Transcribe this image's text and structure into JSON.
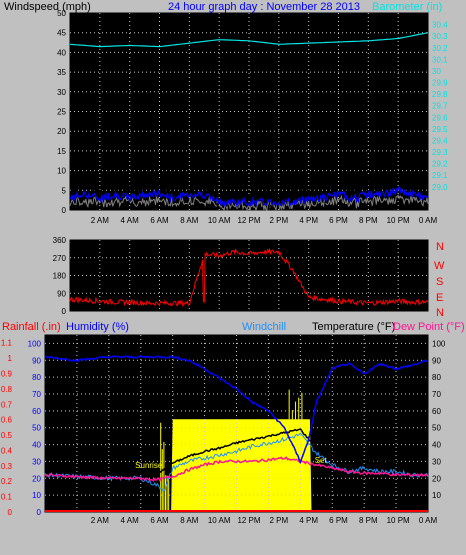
{
  "colors": {
    "background": "#c0c0c0",
    "plot_bg": "#000000",
    "grid": "#c8c8c8",
    "axis_text": "#000000",
    "wind_speed": "#000000",
    "wind_avg": "#0000ff",
    "wind_gray": "#808080",
    "barometer": "#00e5e5",
    "direction": "#ff0000",
    "rainfall": "#ff0000",
    "humidity": "#0000ff",
    "windchill": "#1e90ff",
    "temperature": "#000000",
    "dewpoint": "#ff1493",
    "solar": "#ffff00",
    "sun_label": "#ffff00",
    "title": "#0000ff"
  },
  "chart_data": [
    {
      "type": "line",
      "name": "wind-barometer",
      "title": "24 hour graph day : November 28 2013",
      "left_label": "Windspeed (mph)",
      "right_label": "Barometer (in)",
      "x_ticks": [
        "2 AM",
        "4 AM",
        "6 AM",
        "8 AM",
        "10 AM",
        "12 PM",
        "2 PM",
        "4 PM",
        "6 PM",
        "8 PM",
        "10 PM",
        "0 AM"
      ],
      "x_range_hours": [
        0,
        24
      ],
      "y_left_ticks": [
        0,
        5,
        10,
        15,
        20,
        25,
        30,
        35,
        40,
        45,
        50
      ],
      "y_left_range": [
        0,
        50
      ],
      "y_right_ticks": [
        "29.0",
        "29.1",
        "29.2",
        "29.3",
        "29.4",
        "29.5",
        "29.6",
        "29.7",
        "29.8",
        "29.9",
        "30",
        "30.1",
        "30.2",
        "30.3",
        "30.4"
      ],
      "y_right_range": [
        28.8,
        30.5
      ],
      "grid": true,
      "series": [
        {
          "name": "Windspeed",
          "x": [
            0,
            1,
            2,
            3,
            4,
            5,
            6,
            7,
            8,
            9,
            10,
            11,
            12,
            13,
            14,
            15,
            16,
            17,
            18,
            19,
            20,
            21,
            22,
            23,
            24
          ],
          "values": [
            5,
            6,
            5,
            7,
            5,
            6,
            6,
            4,
            6,
            7,
            3,
            3,
            4,
            3,
            3,
            4,
            5,
            4,
            6,
            5,
            7,
            6,
            8,
            6,
            5
          ]
        },
        {
          "name": "Wind average",
          "x": [
            0,
            1,
            2,
            3,
            4,
            5,
            6,
            7,
            8,
            9,
            10,
            11,
            12,
            13,
            14,
            15,
            16,
            17,
            18,
            19,
            20,
            21,
            22,
            23,
            24
          ],
          "values": [
            3,
            4,
            3,
            4,
            3,
            4,
            4,
            3,
            4,
            4,
            2,
            2,
            2,
            2,
            2,
            2,
            3,
            3,
            4,
            3,
            4,
            4,
            5,
            4,
            3
          ]
        },
        {
          "name": "Barometer",
          "x": [
            0,
            2,
            4,
            6,
            8,
            10,
            12,
            14,
            16,
            18,
            20,
            22,
            24
          ],
          "values": [
            30.23,
            30.21,
            30.22,
            30.21,
            30.24,
            30.27,
            30.26,
            30.23,
            30.24,
            30.25,
            30.26,
            30.28,
            30.33
          ]
        }
      ]
    },
    {
      "type": "scatter",
      "name": "wind-direction",
      "y_ticks": [
        0,
        90,
        180,
        270,
        360
      ],
      "y_range": [
        0,
        360
      ],
      "y_right_labels": [
        "N",
        "E",
        "S",
        "W",
        "N"
      ],
      "x_range_hours": [
        0,
        24
      ],
      "grid": true,
      "series": [
        {
          "name": "Direction",
          "x": [
            0,
            1,
            2,
            3,
            4,
            5,
            6,
            7,
            8,
            9,
            10,
            11,
            12,
            13,
            14,
            15,
            16,
            17,
            18,
            19,
            20,
            21,
            22,
            23,
            24
          ],
          "values": [
            60,
            55,
            50,
            45,
            45,
            40,
            40,
            40,
            40,
            290,
            280,
            300,
            290,
            300,
            300,
            200,
            70,
            60,
            50,
            45,
            40,
            45,
            50,
            45,
            45
          ]
        }
      ]
    },
    {
      "type": "line",
      "name": "temperature-humidity",
      "left_label_1": "Rainfall (.in)",
      "left_label_2": "Humidity (%)",
      "windchill_label": "Windchill",
      "temperature_label": "Temperature (°F)",
      "dewpoint_label": "Dew Point (°F)",
      "sunrise_label": "Sunrise",
      "sunset_label": "Set",
      "x_ticks": [
        "2 AM",
        "4 AM",
        "6 AM",
        "8 AM",
        "10 AM",
        "12 PM",
        "2 PM",
        "4 PM",
        "6 PM",
        "8 PM",
        "10 PM",
        "0 AM"
      ],
      "x_range_hours": [
        0,
        24
      ],
      "y_rain_ticks": [
        "0",
        "0.1",
        "0.2",
        "0.3",
        "0.4",
        "0.5",
        "0.6",
        "0.7",
        "0.8",
        "0.9",
        "1",
        "1.1"
      ],
      "y_rain_range": [
        0,
        1.15
      ],
      "y_humidity_ticks": [
        0,
        10,
        20,
        30,
        40,
        50,
        60,
        70,
        80,
        90,
        100
      ],
      "y_humidity_range": [
        0,
        105
      ],
      "y_temp_ticks": [
        10,
        20,
        30,
        40,
        50,
        60,
        70,
        80,
        90,
        100
      ],
      "y_temp_range": [
        0,
        105
      ],
      "grid": true,
      "series": [
        {
          "name": "Humidity",
          "x": [
            0,
            2,
            4,
            6,
            7,
            8,
            9,
            10,
            11,
            12,
            13,
            14,
            15,
            15.5,
            16,
            16.5,
            17,
            18,
            19,
            20,
            21,
            22,
            23,
            24
          ],
          "values": [
            92,
            90,
            92,
            92,
            92,
            92,
            90,
            85,
            79,
            73,
            65,
            60,
            50,
            40,
            30,
            42,
            65,
            85,
            88,
            82,
            88,
            85,
            87,
            90
          ]
        },
        {
          "name": "Temperature",
          "x": [
            0,
            2,
            4,
            6,
            7,
            8,
            9,
            10,
            11,
            12,
            13,
            14,
            15,
            16,
            17,
            18,
            19,
            20,
            21,
            22,
            23,
            24
          ],
          "values": [
            26,
            25,
            25,
            24,
            22,
            29,
            33,
            36,
            38,
            41,
            43,
            45,
            47,
            49,
            38,
            33,
            31,
            30,
            30,
            29,
            28,
            27
          ]
        },
        {
          "name": "Windchill",
          "x": [
            0,
            2,
            4,
            6,
            7,
            7.5,
            8,
            9,
            10,
            11,
            12,
            13,
            14,
            15,
            16,
            17,
            18,
            19,
            20,
            21,
            22,
            23,
            24
          ],
          "values": [
            22,
            21,
            20,
            20,
            16,
            13,
            26,
            30,
            32,
            34,
            36,
            39,
            41,
            43,
            46,
            35,
            28,
            24,
            26,
            24,
            24,
            22,
            22
          ]
        },
        {
          "name": "Dew Point",
          "x": [
            0,
            2,
            4,
            6,
            7,
            8,
            9,
            10,
            11,
            12,
            13,
            14,
            15,
            16,
            17,
            18,
            19,
            20,
            21,
            22,
            23,
            24
          ],
          "values": [
            22,
            21,
            20,
            20,
            19,
            21,
            25,
            28,
            30,
            30,
            30,
            31,
            32,
            30,
            28,
            26,
            24,
            23,
            23,
            22,
            22,
            22
          ]
        },
        {
          "name": "Solar",
          "x": [
            7.2,
            7.9,
            8.0,
            16.6,
            16.7
          ],
          "values": [
            0,
            0,
            55,
            55,
            0
          ]
        },
        {
          "name": "Rainfall",
          "x": [
            0,
            24
          ],
          "values": [
            0,
            0
          ]
        }
      ]
    }
  ]
}
